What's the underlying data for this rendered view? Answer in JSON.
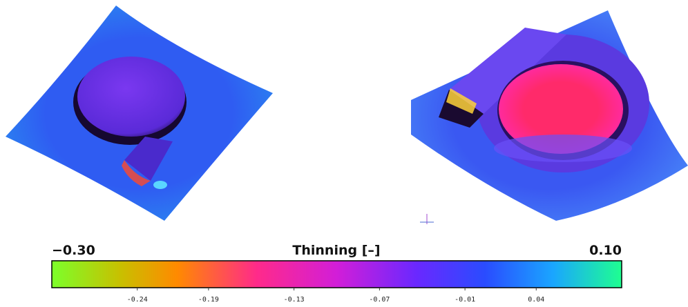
{
  "colorbar": {
    "title": "Thinning [–]",
    "range": [
      {
        "value": -0.3,
        "label": "−0.30"
      },
      {
        "value": 0.1,
        "label": "0.10"
      }
    ],
    "ticks": [
      {
        "value": -0.24,
        "label": "-0.24"
      },
      {
        "value": -0.19,
        "label": "-0.19"
      },
      {
        "value": -0.13,
        "label": "-0.13"
      },
      {
        "value": -0.07,
        "label": "-0.07"
      },
      {
        "value": -0.01,
        "label": "-0.01"
      },
      {
        "value": 0.04,
        "label": "0.04"
      }
    ]
  }
}
